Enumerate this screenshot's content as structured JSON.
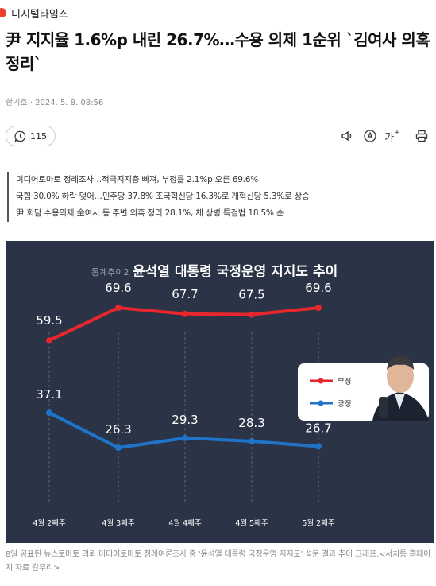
{
  "source": {
    "name": "디지털타임스"
  },
  "article": {
    "headline": "尹 지지율 1.6%p 내린 26.7%…수용 의제 1순위 `김여사 의혹 정리`",
    "byline": "한기호 · 2024. 5. 8. 08:56",
    "comment_count": "115",
    "font_size_label": "가",
    "summary": [
      "미디어토마토 정례조사…적극지지층 빠져, 부정률 2.1%p 오른 69.6%",
      "국힘 30.0% 하락 멎어…민주당 37.8% 조국혁신당 16.3%로 개혁신당 5.3%로 상승",
      "尹 회담 수용의제 金여사 등 주변 의혹 정리 28.1%, 채 상병 특검법 18.5% 순"
    ],
    "caption": "8일 공표된 뉴스토마토 의뢰 미디어토마토 정례여론조사 중 '윤석열 대통령 국정운영 지지도' 설문 결과 추이 그래프.<서치통 홈페이지 자료 갈무리>"
  },
  "colors": {
    "negative": "#e8262d",
    "positive": "#1f74c9",
    "background": "#2b3446"
  },
  "icons": [
    "comment-icon",
    "speaker-icon",
    "translate-icon",
    "font-size-icon",
    "print-icon"
  ],
  "chart_data": {
    "type": "line",
    "title_prefix": "통계추이2_",
    "title": "윤석열 대통령 국정운영 지지도 추이",
    "categories": [
      "4월 2째주",
      "4월 3째주",
      "4월 4째주",
      "4월 5째주",
      "5월 2째주"
    ],
    "series": [
      {
        "name": "부정",
        "values": [
          59.5,
          69.6,
          67.7,
          67.5,
          69.6
        ],
        "color": "#e8262d"
      },
      {
        "name": "긍정",
        "values": [
          37.1,
          26.3,
          29.3,
          28.3,
          26.7
        ],
        "color": "#1f74c9"
      }
    ],
    "legend_position": "right",
    "grid": false
  }
}
